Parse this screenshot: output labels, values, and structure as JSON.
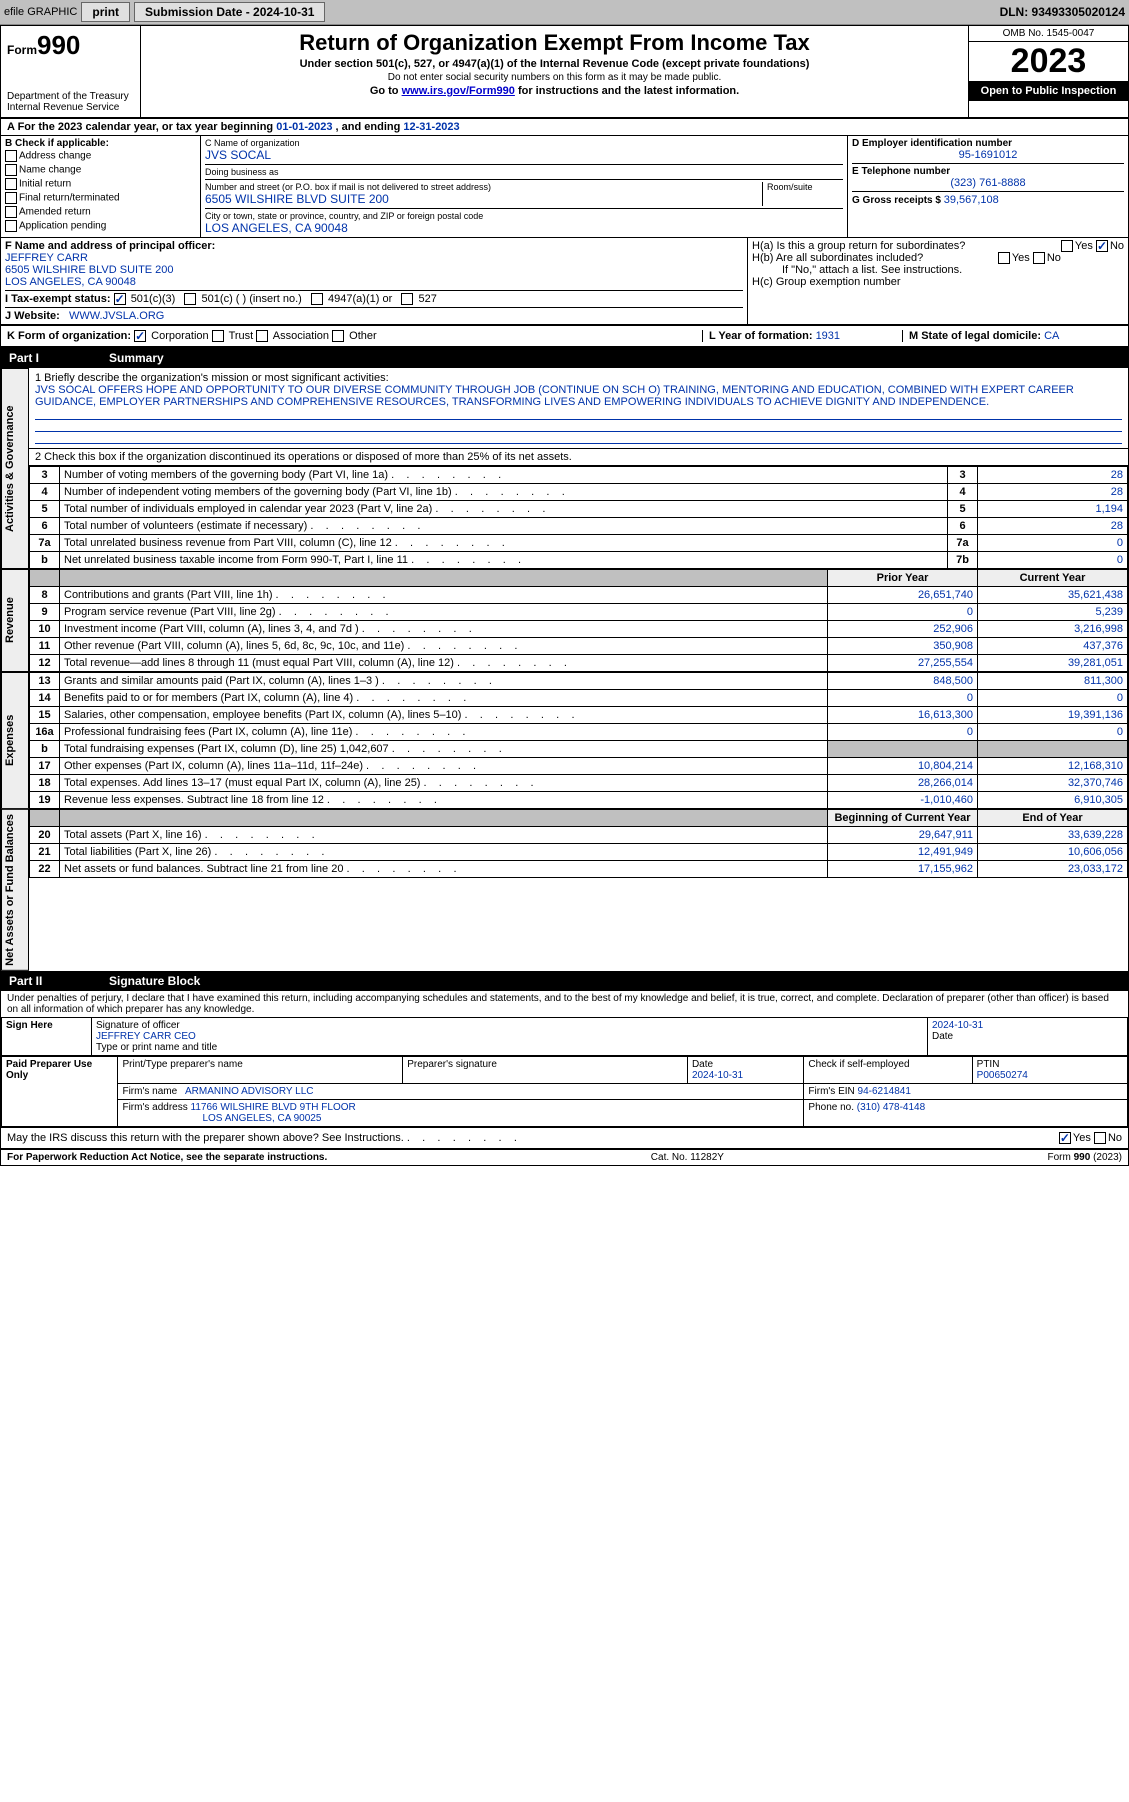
{
  "topbar": {
    "efile": "efile GRAPHIC",
    "print": "print",
    "submission_label": "Submission Date - 2024-10-31",
    "dln": "DLN: 93493305020124"
  },
  "header": {
    "form_prefix": "Form",
    "form_number": "990",
    "dept": "Department of the Treasury",
    "irs": "Internal Revenue Service",
    "title": "Return of Organization Exempt From Income Tax",
    "subtitle": "Under section 501(c), 527, or 4947(a)(1) of the Internal Revenue Code (except private foundations)",
    "warn": "Do not enter social security numbers on this form as it may be made public.",
    "goto": "Go to ",
    "goto_link": "www.irs.gov/Form990",
    "goto_tail": " for instructions and the latest information.",
    "omb": "OMB No. 1545-0047",
    "year": "2023",
    "inspection": "Open to Public Inspection"
  },
  "taxyear": {
    "label_a": "A  For the 2023 calendar year, or tax year beginning ",
    "begin": "01-01-2023",
    "mid": " , and ending ",
    "end": "12-31-2023"
  },
  "checkboxes": {
    "label": "B Check if applicable:",
    "items": [
      "Address change",
      "Name change",
      "Initial return",
      "Final return/terminated",
      "Amended return",
      "Application pending"
    ]
  },
  "org": {
    "name_label": "C Name of organization",
    "name": "JVS SOCAL",
    "dba_label": "Doing business as",
    "street_label": "Number and street (or P.O. box if mail is not delivered to street address)",
    "room_label": "Room/suite",
    "street": "6505 WILSHIRE BLVD SUITE 200",
    "city_label": "City or town, state or province, country, and ZIP or foreign postal code",
    "city": "LOS ANGELES, CA  90048"
  },
  "right_info": {
    "ein_label": "D Employer identification number",
    "ein": "95-1691012",
    "tel_label": "E Telephone number",
    "tel": "(323) 761-8888",
    "gross_label": "G Gross receipts $ ",
    "gross": "39,567,108"
  },
  "officer": {
    "label": "F Name and address of principal officer:",
    "name": "JEFFREY CARR",
    "addr1": "6505 WILSHIRE BLVD SUITE 200",
    "addr2": "LOS ANGELES, CA  90048"
  },
  "group": {
    "ha": "H(a)  Is this a group return for subordinates?",
    "hb": "H(b)  Are all subordinates included?",
    "hb_note": "If \"No,\" attach a list. See instructions.",
    "hc": "H(c)  Group exemption number ",
    "yes": "Yes",
    "no": "No"
  },
  "status": {
    "label": "I  Tax-exempt status:",
    "opt1": "501(c)(3)",
    "opt2": "501(c) (  ) (insert no.)",
    "opt3": "4947(a)(1) or",
    "opt4": "527"
  },
  "website": {
    "label": "J  Website:",
    "url": "WWW.JVSLA.ORG"
  },
  "kforms": {
    "label": "K Form of organization:",
    "opts": [
      "Corporation",
      "Trust",
      "Association",
      "Other"
    ],
    "year_label": "L Year of formation: ",
    "year": "1931",
    "state_label": "M State of legal domicile: ",
    "state": "CA"
  },
  "part1": {
    "num": "Part I",
    "title": "Summary"
  },
  "mission": {
    "label": "1  Briefly describe the organization's mission or most significant activities:",
    "text": "JVS SOCAL OFFERS HOPE AND OPPORTUNITY TO OUR DIVERSE COMMUNITY THROUGH JOB (CONTINUE ON SCH O) TRAINING, MENTORING AND EDUCATION, COMBINED WITH EXPERT CAREER GUIDANCE, EMPLOYER PARTNERSHIPS AND COMPREHENSIVE RESOURCES, TRANSFORMING LIVES AND EMPOWERING INDIVIDUALS TO ACHIEVE DIGNITY AND INDEPENDENCE."
  },
  "line2": "2  Check this box       if the organization discontinued its operations or disposed of more than 25% of its net assets.",
  "governance_label": "Activities & Governance",
  "revenue_label": "Revenue",
  "expenses_label": "Expenses",
  "netassets_label": "Net Assets or Fund Balances",
  "gov_lines": [
    {
      "n": "3",
      "d": "Number of voting members of the governing body (Part VI, line 1a)",
      "box": "3",
      "v": "28"
    },
    {
      "n": "4",
      "d": "Number of independent voting members of the governing body (Part VI, line 1b)",
      "box": "4",
      "v": "28"
    },
    {
      "n": "5",
      "d": "Total number of individuals employed in calendar year 2023 (Part V, line 2a)",
      "box": "5",
      "v": "1,194"
    },
    {
      "n": "6",
      "d": "Total number of volunteers (estimate if necessary)",
      "box": "6",
      "v": "28"
    },
    {
      "n": "7a",
      "d": "Total unrelated business revenue from Part VIII, column (C), line 12",
      "box": "7a",
      "v": "0"
    },
    {
      "n": "b",
      "d": "Net unrelated business taxable income from Form 990-T, Part I, line 11",
      "box": "7b",
      "v": "0"
    }
  ],
  "prior_year": "Prior Year",
  "current_year": "Current Year",
  "rev_lines": [
    {
      "n": "8",
      "d": "Contributions and grants (Part VIII, line 1h)",
      "p": "26,651,740",
      "c": "35,621,438"
    },
    {
      "n": "9",
      "d": "Program service revenue (Part VIII, line 2g)",
      "p": "0",
      "c": "5,239"
    },
    {
      "n": "10",
      "d": "Investment income (Part VIII, column (A), lines 3, 4, and 7d )",
      "p": "252,906",
      "c": "3,216,998"
    },
    {
      "n": "11",
      "d": "Other revenue (Part VIII, column (A), lines 5, 6d, 8c, 9c, 10c, and 11e)",
      "p": "350,908",
      "c": "437,376"
    },
    {
      "n": "12",
      "d": "Total revenue—add lines 8 through 11 (must equal Part VIII, column (A), line 12)",
      "p": "27,255,554",
      "c": "39,281,051"
    }
  ],
  "exp_lines": [
    {
      "n": "13",
      "d": "Grants and similar amounts paid (Part IX, column (A), lines 1–3 )",
      "p": "848,500",
      "c": "811,300"
    },
    {
      "n": "14",
      "d": "Benefits paid to or for members (Part IX, column (A), line 4)",
      "p": "0",
      "c": "0"
    },
    {
      "n": "15",
      "d": "Salaries, other compensation, employee benefits (Part IX, column (A), lines 5–10)",
      "p": "16,613,300",
      "c": "19,391,136"
    },
    {
      "n": "16a",
      "d": "Professional fundraising fees (Part IX, column (A), line 11e)",
      "p": "0",
      "c": "0"
    },
    {
      "n": "b",
      "d": "Total fundraising expenses (Part IX, column (D), line 25) 1,042,607",
      "p": "",
      "c": "",
      "gray": true
    },
    {
      "n": "17",
      "d": "Other expenses (Part IX, column (A), lines 11a–11d, 11f–24e)",
      "p": "10,804,214",
      "c": "12,168,310"
    },
    {
      "n": "18",
      "d": "Total expenses. Add lines 13–17 (must equal Part IX, column (A), line 25)",
      "p": "28,266,014",
      "c": "32,370,746"
    },
    {
      "n": "19",
      "d": "Revenue less expenses. Subtract line 18 from line 12",
      "p": "-1,010,460",
      "c": "6,910,305"
    }
  ],
  "begin_year": "Beginning of Current Year",
  "end_year": "End of Year",
  "net_lines": [
    {
      "n": "20",
      "d": "Total assets (Part X, line 16)",
      "p": "29,647,911",
      "c": "33,639,228"
    },
    {
      "n": "21",
      "d": "Total liabilities (Part X, line 26)",
      "p": "12,491,949",
      "c": "10,606,056"
    },
    {
      "n": "22",
      "d": "Net assets or fund balances. Subtract line 21 from line 20",
      "p": "17,155,962",
      "c": "23,033,172"
    }
  ],
  "part2": {
    "num": "Part II",
    "title": "Signature Block"
  },
  "penalty": "Under penalties of perjury, I declare that I have examined this return, including accompanying schedules and statements, and to the best of my knowledge and belief, it is true, correct, and complete. Declaration of preparer (other than officer) is based on all information of which preparer has any knowledge.",
  "sign": {
    "here": "Sign Here",
    "sig_label": "Signature of officer",
    "officer": "JEFFREY CARR  CEO",
    "name_label": "Type or print name and title",
    "date_label": "Date",
    "date": "2024-10-31"
  },
  "preparer": {
    "label": "Paid Preparer Use Only",
    "name_label": "Print/Type preparer's name",
    "sig_label": "Preparer's signature",
    "date_label": "Date",
    "date": "2024-10-31",
    "check_label": "Check        if self-employed",
    "ptin_label": "PTIN",
    "ptin": "P00650274",
    "firm_label": "Firm's name",
    "firm": "ARMANINO ADVISORY LLC",
    "ein_label": "Firm's EIN ",
    "ein": "94-6214841",
    "addr_label": "Firm's address",
    "addr1": "11766 WILSHIRE BLVD 9TH FLOOR",
    "addr2": "LOS ANGELES, CA  90025",
    "phone_label": "Phone no. ",
    "phone": "(310) 478-4148"
  },
  "discuss": "May the IRS discuss this return with the preparer shown above? See Instructions.",
  "footer": {
    "pra": "For Paperwork Reduction Act Notice, see the separate instructions.",
    "cat": "Cat. No. 11282Y",
    "form": "Form 990 (2023)"
  },
  "colors": {
    "blue": "#0033aa",
    "link": "#0000cc",
    "gray_bg": "#c0c0c0",
    "lt_gray": "#eeeeee"
  }
}
